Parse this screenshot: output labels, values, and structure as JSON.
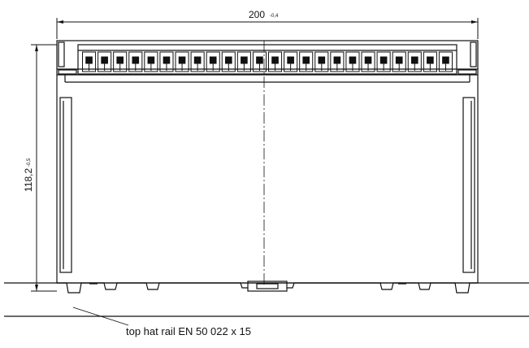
{
  "dimensions": {
    "width": {
      "value": "200",
      "tolerance": "-0,4"
    },
    "height": {
      "value": "118,2",
      "tolerance": "-0,5"
    }
  },
  "terminal_count": 24,
  "rail_label": "top hat rail EN 50 022 x 15"
}
